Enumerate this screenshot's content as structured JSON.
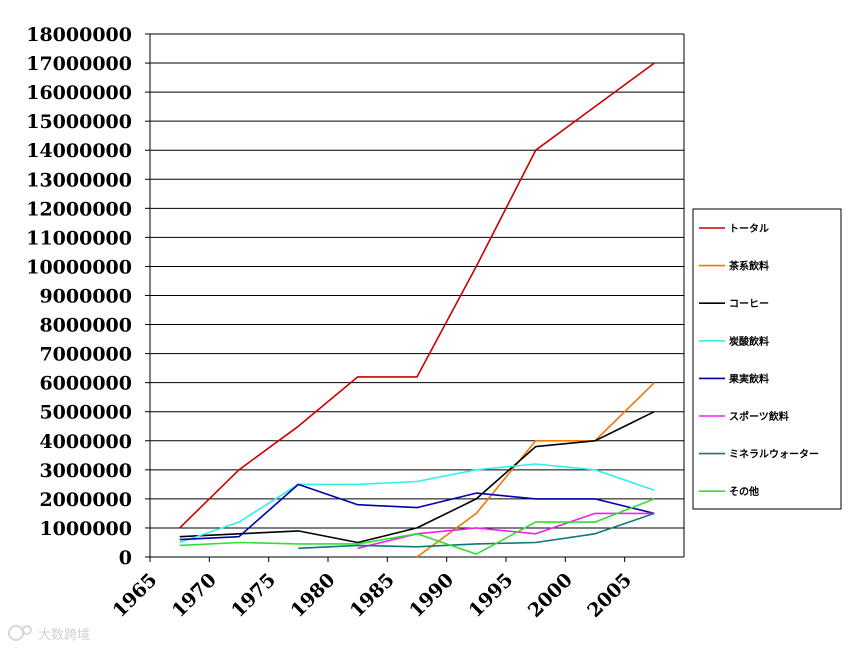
{
  "chart_data": {
    "type": "line",
    "title": "",
    "xlabel": "",
    "ylabel": "",
    "xlim": [
      1965,
      2010
    ],
    "ylim": [
      0,
      18000000
    ],
    "x_ticks": [
      "1965",
      "1970",
      "1975",
      "1980",
      "1985",
      "1990",
      "1995",
      "2000",
      "2005"
    ],
    "y_ticks": [
      "0",
      "1000000",
      "2000000",
      "3000000",
      "4000000",
      "5000000",
      "6000000",
      "7000000",
      "8000000",
      "9000000",
      "10000000",
      "11000000",
      "12000000",
      "13000000",
      "14000000",
      "15000000",
      "16000000",
      "17000000",
      "18000000"
    ],
    "grid": "horizontal",
    "legend": "right",
    "series": [
      {
        "name": "トータル",
        "color": "#cc0000",
        "x": [
          1967.5,
          1972.5,
          1977.5,
          1982.5,
          1987.5,
          1992.5,
          1997.5,
          2002.5,
          2007.5
        ],
        "y": [
          1000000,
          3000000,
          4500000,
          6200000,
          6200000,
          10000000,
          14000000,
          15500000,
          17000000
        ]
      },
      {
        "name": "茶系飲料",
        "color": "#f07800",
        "x": [
          1987.5,
          1992.5,
          1997.5,
          2002.5,
          2007.5
        ],
        "y": [
          0,
          1500000,
          4000000,
          4000000,
          6000000
        ]
      },
      {
        "name": "コーヒー",
        "color": "#000000",
        "x": [
          1967.5,
          1972.5,
          1977.5,
          1982.5,
          1987.5,
          1992.5,
          1997.5,
          2002.5,
          2007.5
        ],
        "y": [
          700000,
          800000,
          900000,
          500000,
          1000000,
          2000000,
          3800000,
          4000000,
          5000000
        ]
      },
      {
        "name": "炭酸飲料",
        "color": "#33eeee",
        "x": [
          1967.5,
          1972.5,
          1977.5,
          1982.5,
          1987.5,
          1992.5,
          1997.5,
          2002.5,
          2007.5
        ],
        "y": [
          500000,
          1200000,
          2500000,
          2500000,
          2600000,
          3000000,
          3200000,
          3000000,
          2300000
        ]
      },
      {
        "name": "果実飲料",
        "color": "#0000aa",
        "x": [
          1967.5,
          1972.5,
          1977.5,
          1982.5,
          1987.5,
          1992.5,
          1997.5,
          2002.5,
          2007.5
        ],
        "y": [
          600000,
          700000,
          2500000,
          1800000,
          1700000,
          2200000,
          2000000,
          2000000,
          1500000
        ]
      },
      {
        "name": "スポーツ飲料",
        "color": "#ee22ee",
        "x": [
          1982.5,
          1987.5,
          1992.5,
          1997.5,
          2002.5,
          2007.5
        ],
        "y": [
          300000,
          800000,
          1000000,
          800000,
          1500000,
          1500000
        ]
      },
      {
        "name": "ミネラルウォーター",
        "color": "#117777",
        "x": [
          1977.5,
          1982.5,
          1987.5,
          1992.5,
          1997.5,
          2002.5,
          2007.5
        ],
        "y": [
          300000,
          400000,
          350000,
          450000,
          500000,
          800000,
          1500000
        ]
      },
      {
        "name": "その他",
        "color": "#33dd33",
        "x": [
          1967.5,
          1972.5,
          1977.5,
          1982.5,
          1987.5,
          1992.5,
          1997.5,
          2002.5,
          2007.5
        ],
        "y": [
          400000,
          500000,
          450000,
          450000,
          800000,
          100000,
          1200000,
          1200000,
          2000000
        ]
      }
    ]
  },
  "watermark": "大数跨境"
}
